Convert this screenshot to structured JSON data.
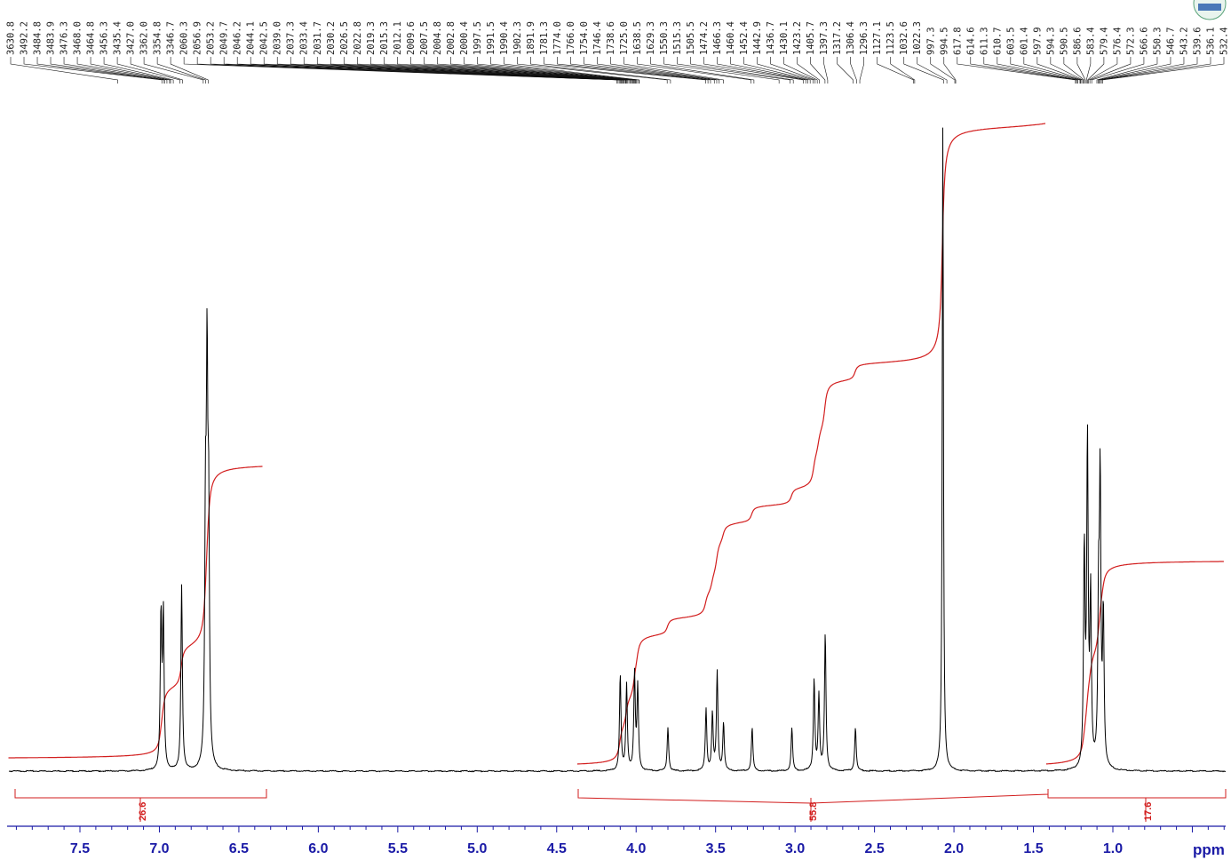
{
  "chart_data": {
    "type": "line",
    "title": "",
    "xlabel": "ppm",
    "ylabel": "",
    "xlim": [
      7.95,
      0.3
    ],
    "x_reversed": true,
    "x_ticks": [
      7.5,
      7.0,
      6.5,
      6.0,
      5.5,
      5.0,
      4.5,
      4.0,
      3.5,
      3.0,
      2.5,
      2.0,
      1.5,
      1.0
    ],
    "x_tick_labels": [
      "7.5",
      "7.0",
      "6.5",
      "6.0",
      "5.5",
      "5.0",
      "4.5",
      "4.0",
      "3.5",
      "3.0",
      "2.5",
      "2.0",
      "1.5",
      "1.0"
    ],
    "peak_labels": [
      "3630.8",
      "3492.2",
      "3484.8",
      "3483.9",
      "3476.3",
      "3468.0",
      "3464.8",
      "3456.3",
      "3435.4",
      "3427.0",
      "3362.0",
      "3354.8",
      "3346.7",
      "2060.3",
      "2056.9",
      "2053.2",
      "2049.7",
      "2046.2",
      "2044.1",
      "2042.5",
      "2039.0",
      "2037.3",
      "2033.4",
      "2031.7",
      "2030.2",
      "2026.5",
      "2022.8",
      "2019.3",
      "2015.3",
      "2012.1",
      "2009.6",
      "2007.5",
      "2004.8",
      "2002.8",
      "2000.4",
      "1997.5",
      "1991.5",
      "1990.4",
      "1902.3",
      "1891.9",
      "1781.3",
      "1774.0",
      "1766.0",
      "1754.0",
      "1746.4",
      "1738.6",
      "1725.0",
      "1638.5",
      "1629.3",
      "1550.3",
      "1515.3",
      "1505.5",
      "1474.2",
      "1466.3",
      "1460.4",
      "1452.4",
      "1442.9",
      "1436.7",
      "1430.1",
      "1423.2",
      "1405.7",
      "1397.3",
      "1317.2",
      "1306.4",
      "1296.3",
      "1127.1",
      "1123.5",
      "1032.6",
      "1022.3",
      "997.3",
      "994.5",
      "617.8",
      "614.6",
      "611.3",
      "610.7",
      "603.5",
      "601.4",
      "597.9",
      "594.3",
      "590.5",
      "586.6",
      "583.4",
      "579.4",
      "576.4",
      "572.3",
      "566.6",
      "550.3",
      "546.7",
      "543.2",
      "539.6",
      "536.1",
      "532.4"
    ],
    "peaks": [
      {
        "ppm": 6.99,
        "height": 0.236
      },
      {
        "ppm": 6.975,
        "height": 0.236
      },
      {
        "ppm": 6.86,
        "height": 0.287
      },
      {
        "ppm": 6.71,
        "height": 0.349
      },
      {
        "ppm": 6.7,
        "height": 0.563
      },
      {
        "ppm": 6.69,
        "height": 0.349
      },
      {
        "ppm": 4.1,
        "height": 0.148
      },
      {
        "ppm": 4.06,
        "height": 0.133
      },
      {
        "ppm": 4.01,
        "height": 0.148
      },
      {
        "ppm": 3.99,
        "height": 0.128
      },
      {
        "ppm": 3.8,
        "height": 0.068
      },
      {
        "ppm": 3.56,
        "height": 0.096
      },
      {
        "ppm": 3.52,
        "height": 0.087
      },
      {
        "ppm": 3.49,
        "height": 0.152
      },
      {
        "ppm": 3.45,
        "height": 0.074
      },
      {
        "ppm": 3.27,
        "height": 0.067
      },
      {
        "ppm": 3.02,
        "height": 0.067
      },
      {
        "ppm": 2.88,
        "height": 0.141
      },
      {
        "ppm": 2.85,
        "height": 0.115
      },
      {
        "ppm": 2.81,
        "height": 0.213
      },
      {
        "ppm": 2.62,
        "height": 0.068
      },
      {
        "ppm": 2.07,
        "height": 1.0
      },
      {
        "ppm": 1.18,
        "height": 0.334
      },
      {
        "ppm": 1.16,
        "height": 0.499
      },
      {
        "ppm": 1.14,
        "height": 0.259
      },
      {
        "ppm": 1.09,
        "height": 0.233
      },
      {
        "ppm": 1.08,
        "height": 0.429
      },
      {
        "ppm": 1.06,
        "height": 0.233
      }
    ],
    "integrals": [
      {
        "from": 7.95,
        "to": 6.35,
        "value": "26.6"
      },
      {
        "from": 4.37,
        "to": 1.42,
        "value": "55.8"
      },
      {
        "from": 1.42,
        "to": 0.3,
        "value": "17.6"
      }
    ],
    "colors": {
      "spectrum": "#000000",
      "integral": "#d21e1e",
      "axis": "#1a1aa6"
    }
  }
}
